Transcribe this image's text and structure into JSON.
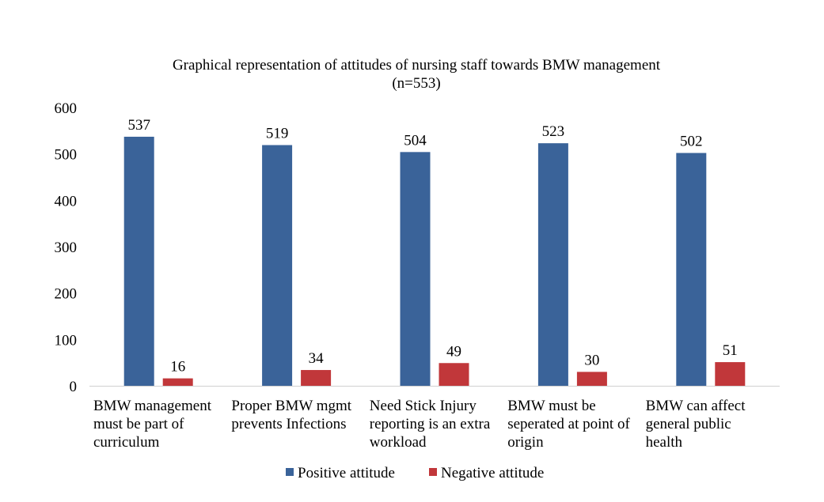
{
  "chart_data": {
    "type": "bar",
    "title": "Graphical representation  of attitudes of nursing  staff towards BMW  management",
    "subtitle": "(n=553)",
    "xlabel": "",
    "ylabel": "",
    "ylim": [
      0,
      600
    ],
    "yticks": [
      0,
      100,
      200,
      300,
      400,
      500,
      600
    ],
    "grid": false,
    "legend_position": "bottom",
    "categories": [
      [
        "BMW management",
        "must be part of",
        "curriculum"
      ],
      [
        "Proper BMW mgmt",
        "prevents Infections"
      ],
      [
        "Need Stick Injury",
        "reporting is an extra",
        "workload"
      ],
      [
        "BMW must be",
        "seperated at point of",
        "origin"
      ],
      [
        "BMW can affect",
        "general public",
        "health"
      ]
    ],
    "series": [
      {
        "name": "Positive attitude",
        "color": "#3A6399",
        "values": [
          537,
          519,
          504,
          523,
          502
        ]
      },
      {
        "name": "Negative attitude",
        "color": "#C1373A",
        "values": [
          16,
          34,
          49,
          30,
          51
        ]
      }
    ]
  }
}
